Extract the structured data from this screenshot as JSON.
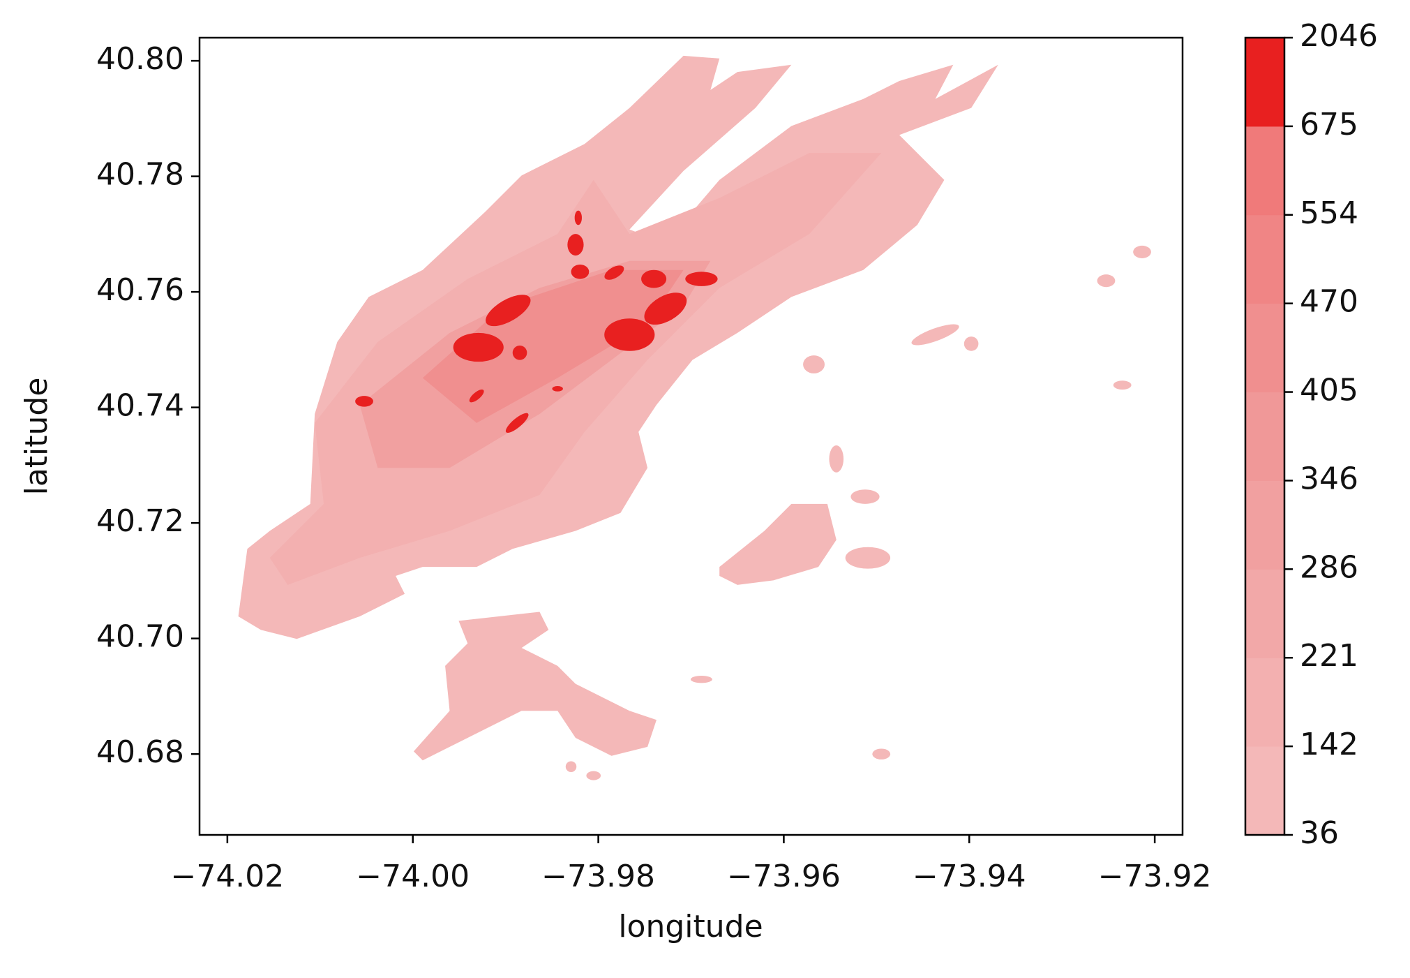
{
  "chart_data": {
    "type": "contour",
    "x_label": "longitude",
    "y_label": "latitude",
    "xlim": [
      -74.023,
      -73.917
    ],
    "xticks": [
      {
        "value": -74.02,
        "label": "−74.02"
      },
      {
        "value": -74.0,
        "label": "−74.00"
      },
      {
        "value": -73.98,
        "label": "−73.98"
      },
      {
        "value": -73.96,
        "label": "−73.96"
      },
      {
        "value": -73.94,
        "label": "−73.94"
      },
      {
        "value": -73.92,
        "label": "−73.92"
      }
    ],
    "ylim": [
      40.666,
      40.804
    ],
    "yticks": [
      {
        "value": 40.68,
        "label": "40.68"
      },
      {
        "value": 40.7,
        "label": "40.70"
      },
      40.72,
      40.74,
      40.76,
      40.78,
      {
        "value": 40.8,
        "label": "40.80"
      }
    ],
    "levels": [
      36,
      142,
      221,
      286,
      346,
      405,
      470,
      554,
      675,
      2046
    ],
    "colors": [
      "#f4b8b8",
      "#f3b0b0",
      "#f2a8a8",
      "#f1a0a0",
      "#f09898",
      "#f08f8f",
      "#f08585",
      "#f07a7a",
      "#e82020"
    ]
  }
}
